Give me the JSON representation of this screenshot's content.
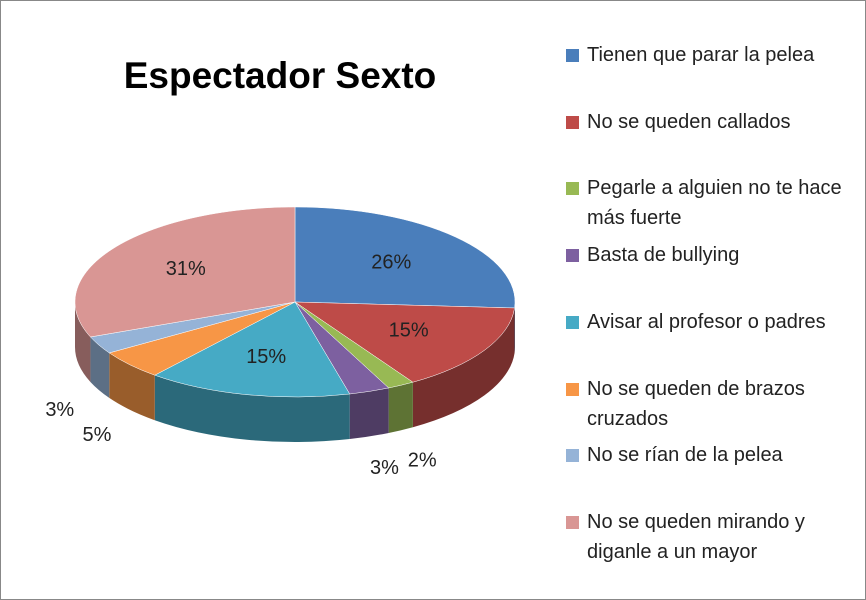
{
  "chart_data": {
    "type": "pie",
    "title": "Espectador Sexto",
    "categories": [
      "Tienen que parar la pelea",
      "No se queden callados",
      "Pegarle a alguien no te hace más fuerte",
      "Basta de bullying",
      "Avisar al profesor o padres",
      "No se queden de brazos cruzados",
      "No se rían de la pelea",
      "No se queden mirando y diganle a un mayor"
    ],
    "values": [
      26,
      15,
      2,
      3,
      15,
      5,
      3,
      31
    ],
    "value_labels": [
      "26%",
      "15%",
      "2%",
      "3%",
      "15%",
      "5%",
      "3%",
      "31%"
    ],
    "colors": [
      "#4a7ebb",
      "#be4b48",
      "#98b954",
      "#7d60a0",
      "#46aac5",
      "#f79646",
      "#95b3d7",
      "#d99694"
    ],
    "legend": "right"
  }
}
